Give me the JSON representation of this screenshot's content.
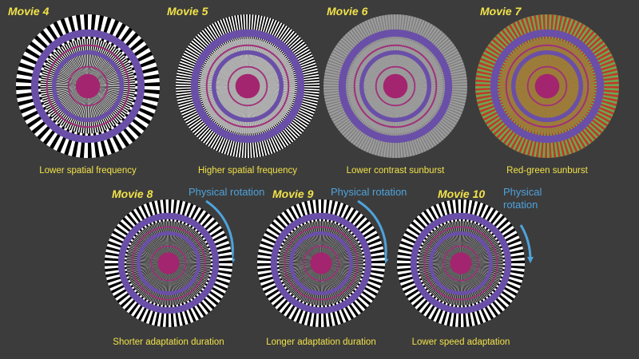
{
  "colors": {
    "background": "#3c3c3c",
    "title": "#f2e24a",
    "caption": "#f2e24a",
    "rotation": "#4ea3dc",
    "ring_purple": "#6a4fa8",
    "ring_magenta": "#a0307a",
    "center": "#a3256f"
  },
  "panels": [
    {
      "id": "movie4",
      "title": "Movie 4",
      "caption": "Lower spatial frequency",
      "pattern": "low-frequency-bw-sunburst"
    },
    {
      "id": "movie5",
      "title": "Movie 5",
      "caption": "Higher spatial frequency",
      "pattern": "high-frequency-bw-sunburst"
    },
    {
      "id": "movie6",
      "title": "Movie 6",
      "caption": "Lower contrast sunburst",
      "pattern": "low-contrast-gray-sunburst"
    },
    {
      "id": "movie7",
      "title": "Movie 7",
      "caption": "Red-green sunburst",
      "pattern": "red-green-sunburst"
    },
    {
      "id": "movie8",
      "title": "Movie 8",
      "caption": "Shorter adaptation duration",
      "pattern": "bw-sunburst",
      "rotation": [
        "Physical",
        "rotation"
      ],
      "arrow": "long"
    },
    {
      "id": "movie9",
      "title": "Movie 9",
      "caption": "Longer adaptation duration",
      "pattern": "bw-sunburst",
      "rotation": [
        "Physical",
        "rotation"
      ],
      "arrow": "long"
    },
    {
      "id": "movie10",
      "title": "Movie 10",
      "caption": "Lower speed adaptation",
      "pattern": "bw-sunburst",
      "rotation": [
        "Physical",
        "rotation"
      ],
      "arrow": "short"
    }
  ]
}
